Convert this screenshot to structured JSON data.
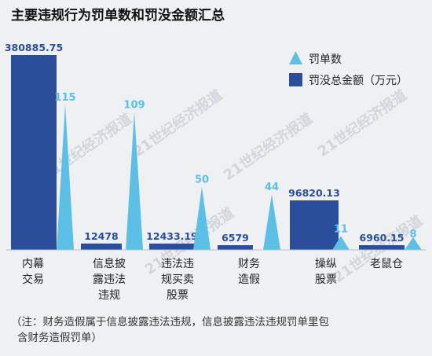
{
  "chart_data": {
    "type": "bar",
    "title": "主要违规行为罚单数和罚没金额汇总",
    "categories": [
      [
        "内幕",
        "交易"
      ],
      [
        "信息披",
        "露违法",
        "违规"
      ],
      [
        "违法违",
        "规买卖",
        "股票"
      ],
      [
        "财务",
        "造假"
      ],
      [
        "操纵",
        "股票"
      ],
      [
        "老鼠仓"
      ]
    ],
    "series": [
      {
        "name": "罚没总金额（万元）",
        "shape": "bar",
        "color": "#2b4e9a",
        "values": [
          380885.75,
          12478,
          12433.19,
          6579,
          96820.13,
          6960.15
        ],
        "labels": [
          "380885.75",
          "12478",
          "12433.19",
          "6579",
          "96820.13",
          "6960.15"
        ]
      },
      {
        "name": "罚单数",
        "shape": "triangle",
        "color": "#5cc0e6",
        "values": [
          115,
          109,
          50,
          44,
          11,
          8
        ],
        "labels": [
          "115",
          "109",
          "50",
          "44",
          "11",
          "8"
        ]
      }
    ],
    "legend_position": "top-right",
    "note": [
      "（注：财务造假属于信息披露违法违规，信息披露违法违规罚单里包",
      "含财务造假罚单）"
    ],
    "watermark": "21世纪经济报道"
  }
}
